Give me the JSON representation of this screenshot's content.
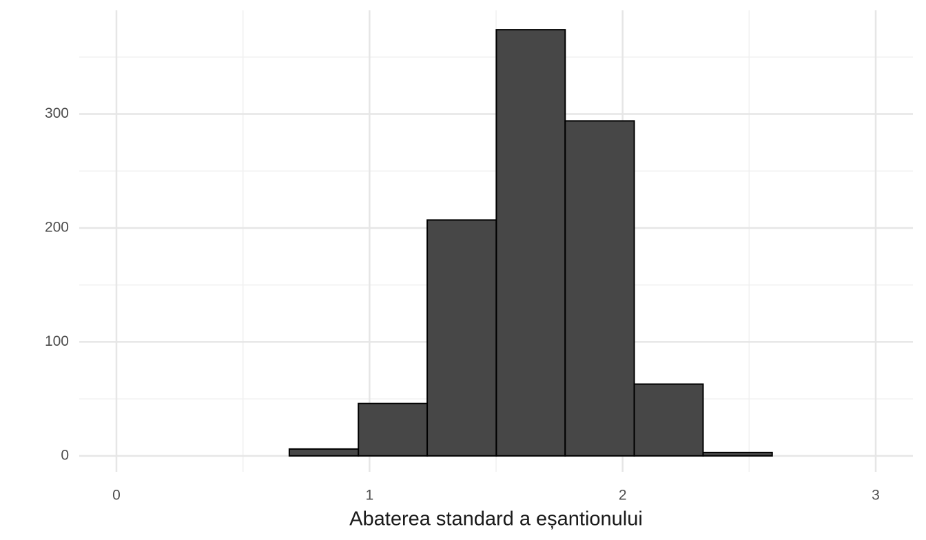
{
  "chart_data": {
    "type": "histogram",
    "x_label": "Abaterea standard a eșantionului",
    "bins": [
      0.683,
      0.956,
      1.228,
      1.501,
      1.773,
      2.046,
      2.318,
      2.591
    ],
    "values": [
      6,
      46,
      207,
      374,
      294,
      63,
      3
    ],
    "color": "#474747",
    "xlim": [
      -0.147,
      3.147
    ],
    "ylim": [
      -14,
      391
    ],
    "xticks": [
      0,
      1,
      2,
      3
    ],
    "yticks": [
      0,
      100,
      200,
      300
    ],
    "x_minor_ticks": [
      0.5,
      1.5,
      2.5
    ],
    "y_minor_ticks": [
      50,
      150,
      250,
      350
    ],
    "grid": true
  }
}
